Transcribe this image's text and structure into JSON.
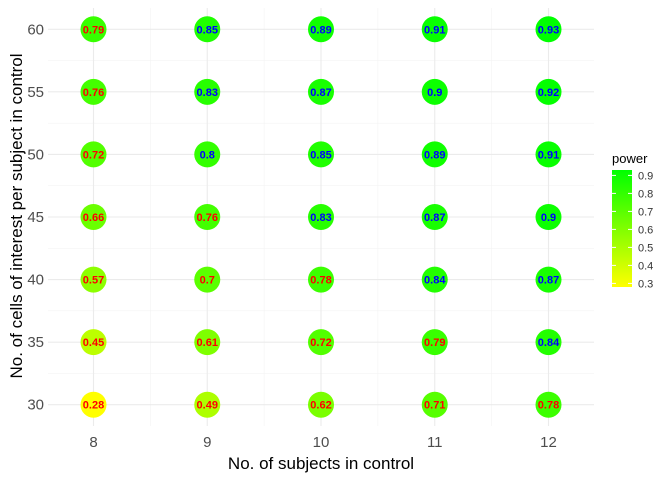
{
  "chart_data": {
    "type": "scatter",
    "xlabel": "No. of subjects in control",
    "ylabel": "No. of cells of interest per subject in control",
    "x_ticks": [
      8,
      9,
      10,
      11,
      12
    ],
    "y_ticks": [
      30,
      35,
      40,
      45,
      50,
      55,
      60
    ],
    "x": [
      8,
      9,
      10,
      11,
      12
    ],
    "y": [
      30,
      35,
      40,
      45,
      50,
      55,
      60
    ],
    "values": [
      [
        0.28,
        0.49,
        0.62,
        0.71,
        0.78
      ],
      [
        0.45,
        0.61,
        0.72,
        0.79,
        0.84
      ],
      [
        0.57,
        0.7,
        0.78,
        0.84,
        0.87
      ],
      [
        0.66,
        0.76,
        0.83,
        0.87,
        0.9
      ],
      [
        0.72,
        0.8,
        0.85,
        0.89,
        0.91
      ],
      [
        0.76,
        0.83,
        0.87,
        0.9,
        0.92
      ],
      [
        0.79,
        0.85,
        0.89,
        0.91,
        0.93
      ]
    ],
    "labels": [
      [
        "0.28",
        "0.49",
        "0.62",
        "0.71",
        "0.78"
      ],
      [
        "0.45",
        "0.61",
        "0.72",
        "0.79",
        "0.84"
      ],
      [
        "0.57",
        "0.7",
        "0.78",
        "0.84",
        "0.87"
      ],
      [
        "0.66",
        "0.76",
        "0.83",
        "0.87",
        "0.9"
      ],
      [
        "0.72",
        "0.8",
        "0.85",
        "0.89",
        "0.91"
      ],
      [
        "0.76",
        "0.83",
        "0.87",
        "0.9",
        "0.92"
      ],
      [
        "0.79",
        "0.85",
        "0.89",
        "0.91",
        "0.93"
      ]
    ],
    "label_threshold": 0.8,
    "label_colors": {
      "below": "#ff0000",
      "at_or_above": "#0000ff"
    },
    "color_scale": {
      "low": "#ffff00",
      "high": "#00ff00",
      "range": [
        0.28,
        0.93
      ]
    },
    "legend": {
      "title": "power",
      "ticks": [
        "0.3",
        "0.4",
        "0.5",
        "0.6",
        "0.7",
        "0.8",
        "0.9"
      ],
      "placement": "right"
    },
    "grid": true
  }
}
